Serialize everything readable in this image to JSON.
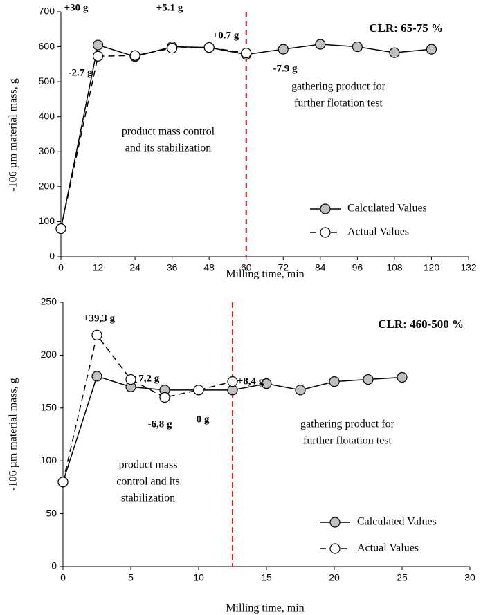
{
  "chart_data": [
    {
      "type": "line",
      "x_label": "Milling time, min",
      "y_label": "-106 µm material mass, g",
      "xlim": [
        0,
        132
      ],
      "xticks": [
        0,
        12,
        24,
        36,
        48,
        60,
        72,
        84,
        96,
        108,
        120,
        132
      ],
      "ylim": [
        0,
        700
      ],
      "yticks": [
        0,
        100,
        200,
        300,
        400,
        500,
        600,
        700
      ],
      "vline": 60,
      "vline_color": "#c00000",
      "series": [
        {
          "name": "Calculated Values",
          "color": "#c0c0c0",
          "line_style": "solid",
          "x": [
            0,
            12,
            24,
            36,
            48,
            60,
            72,
            84,
            96,
            108,
            120
          ],
          "values": [
            80,
            605,
            572,
            600,
            598,
            578,
            593,
            607,
            600,
            583,
            593
          ]
        },
        {
          "name": "Actual Values",
          "color": "#ffffff",
          "line_style": "dashed",
          "x": [
            0,
            12,
            24,
            36,
            48,
            60
          ],
          "values": [
            80,
            573,
            575,
            596,
            598,
            582
          ]
        }
      ],
      "annotations": [
        "+30 g",
        "-2.7 g",
        "+5.1 g",
        "+0.7 g",
        "-7.9 g"
      ],
      "label": "CLR:  65-75 %",
      "notes": [
        [
          "gathering product for",
          "further flotation test"
        ],
        [
          "product mass control",
          "and its stabilization"
        ]
      ],
      "legend": "lower right"
    },
    {
      "type": "line",
      "x_label": "Milling time, min",
      "y_label": "-106 µm material mass, g",
      "xlim": [
        0,
        30
      ],
      "xticks": [
        0,
        5,
        10,
        15,
        20,
        25,
        30
      ],
      "ylim": [
        0,
        250
      ],
      "yticks": [
        0,
        50,
        100,
        150,
        200,
        250
      ],
      "vline": 12.5,
      "vline_color": "#e02020",
      "series": [
        {
          "name": "Calculated Values",
          "color": "#c0c0c0",
          "line_style": "solid",
          "x": [
            0,
            2.5,
            5,
            7.5,
            10,
            12.5,
            15,
            17.5,
            20,
            22.5,
            25
          ],
          "values": [
            80,
            180,
            170,
            167,
            167,
            167,
            173,
            167,
            175,
            177,
            179
          ]
        },
        {
          "name": "Actual Values",
          "color": "#ffffff",
          "line_style": "dashed",
          "x": [
            0,
            2.5,
            5,
            7.5,
            10,
            12.5
          ],
          "values": [
            80,
            219,
            177,
            160,
            167,
            175
          ]
        }
      ],
      "annotations": [
        "+39,3 g",
        "+7,2 g",
        "-6,8 g",
        "0 g",
        "+8,4 g"
      ],
      "label": "CLR: 460-500 %",
      "notes": [
        [
          "gathering product for",
          "further flotation test"
        ],
        [
          "product mass",
          "control and its",
          "stabilization"
        ]
      ],
      "legend": "lower right"
    }
  ]
}
